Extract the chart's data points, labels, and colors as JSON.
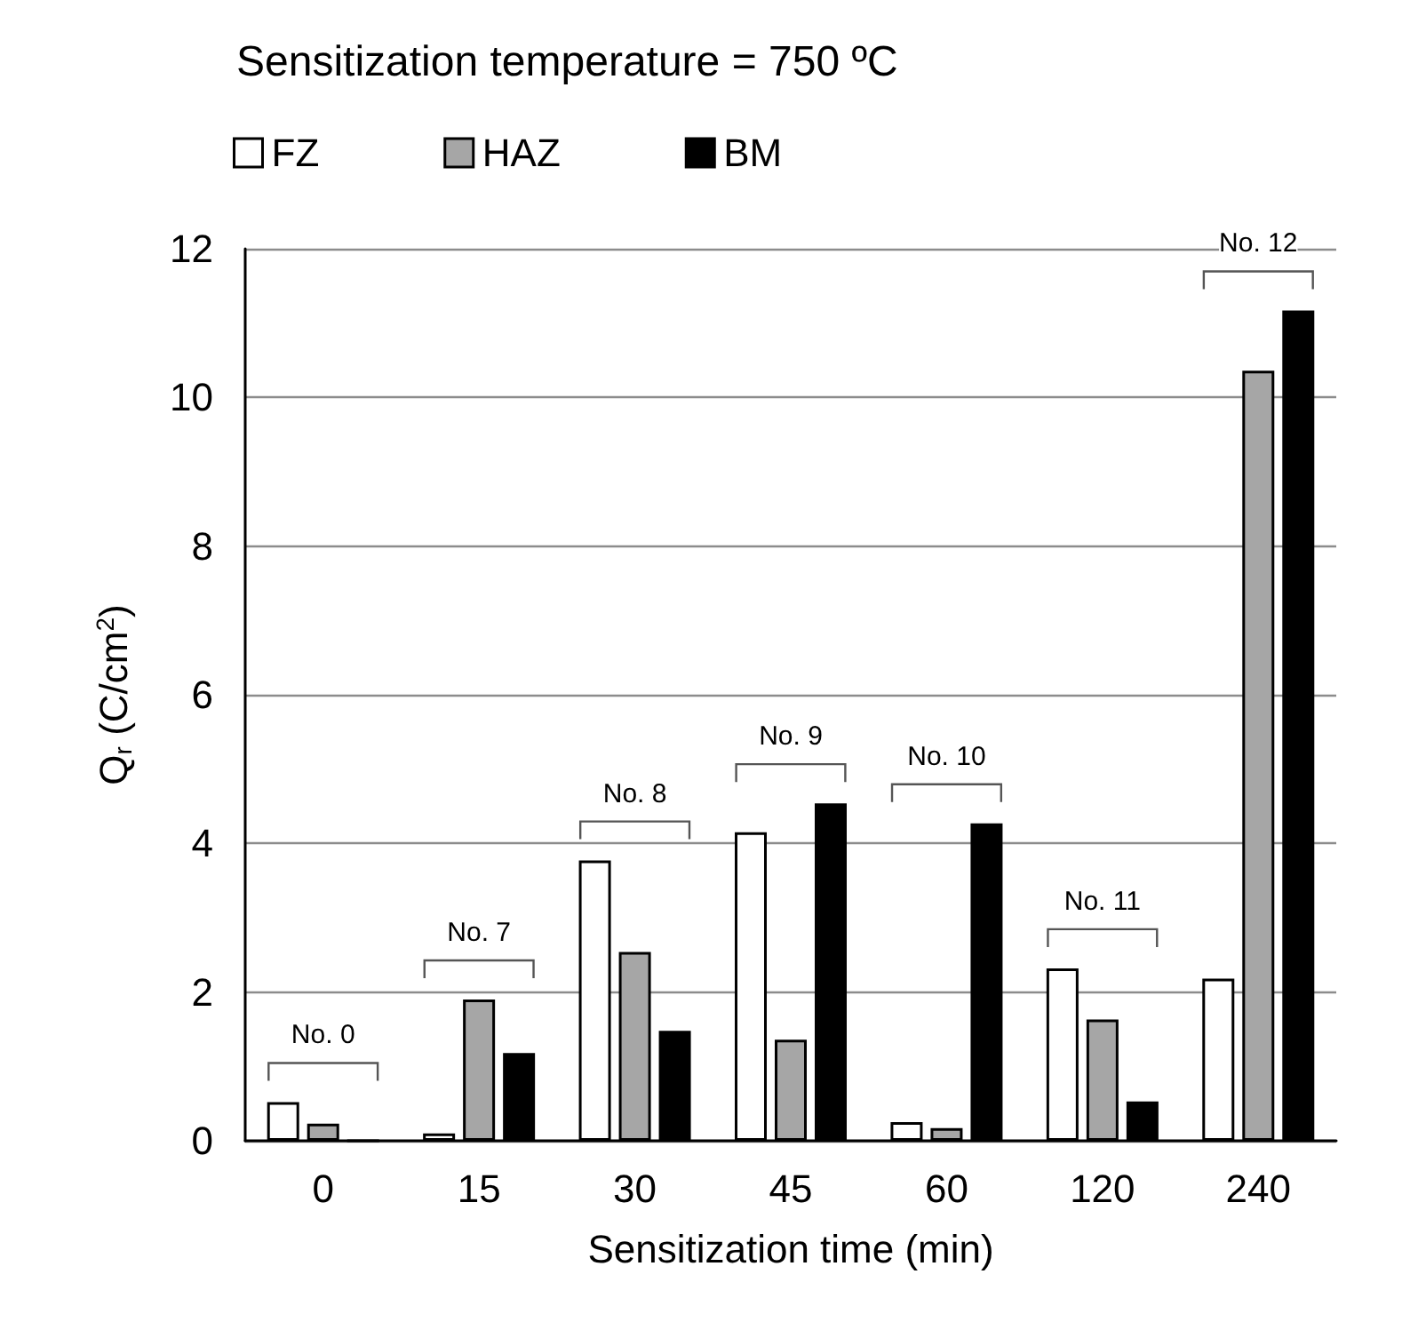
{
  "chart_data": {
    "type": "bar",
    "title": "Sensitization temperature = 750 ºC",
    "xlabel": "Sensitization time (min)",
    "ylabel": "Q$_{r}$ (C/cm$^{2}$)",
    "categories": [
      "0",
      "15",
      "30",
      "45",
      "60",
      "120",
      "240"
    ],
    "series": [
      {
        "name": "FZ",
        "color": "#ffffff",
        "values": [
          0.52,
          0.1,
          3.77,
          4.15,
          0.25,
          2.32,
          2.18
        ]
      },
      {
        "name": "HAZ",
        "color": "#a6a6a6",
        "values": [
          0.23,
          1.9,
          2.54,
          1.36,
          0.17,
          1.63,
          10.36
        ]
      },
      {
        "name": "BM",
        "color": "#000000",
        "values": [
          0,
          1.18,
          1.48,
          4.54,
          4.27,
          0.53,
          11.17
        ]
      }
    ],
    "ylim": [
      0,
      12
    ],
    "yticks": [
      0,
      2,
      4,
      6,
      8,
      10,
      12
    ],
    "grid": "y",
    "legend": "top",
    "annotations": [
      "No. 0",
      "No. 7",
      "No. 8",
      "No. 9",
      "No. 10",
      "No. 11",
      "No. 12"
    ]
  }
}
